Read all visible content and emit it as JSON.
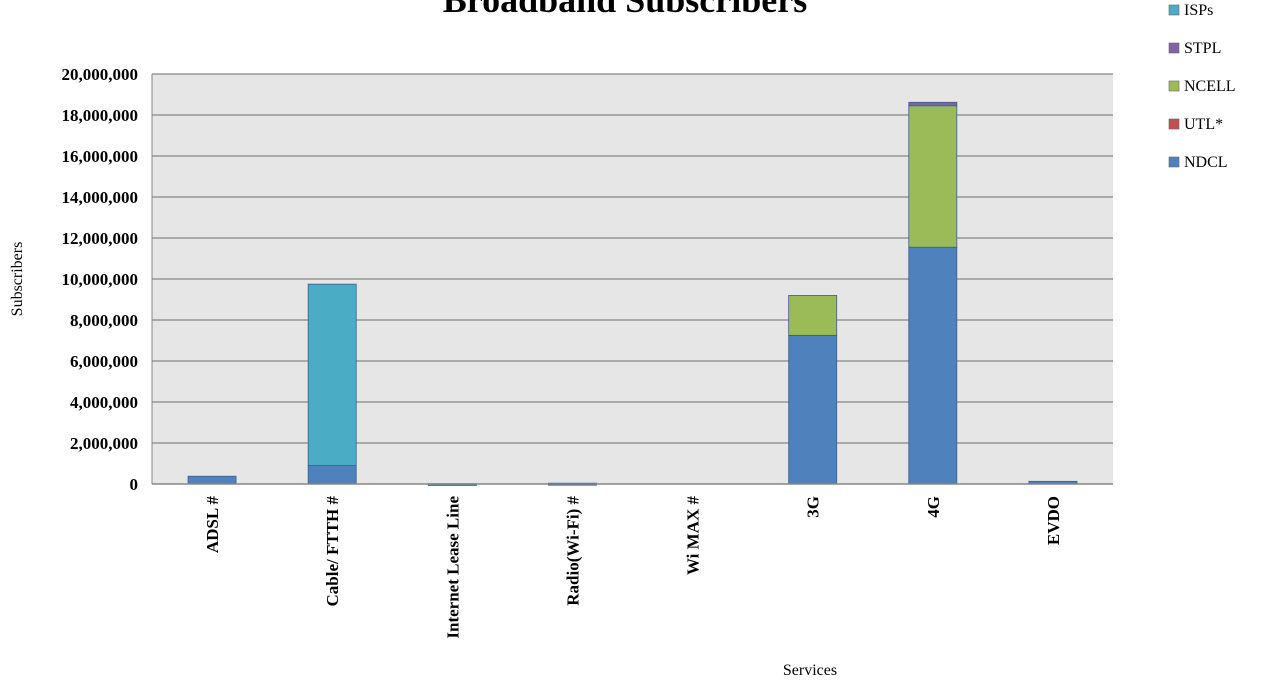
{
  "chart_data": {
    "type": "bar",
    "stacked": true,
    "title": "Broadband Subscribers",
    "xlabel": "Services",
    "ylabel": "Subscribers",
    "ylim": [
      0,
      20000000
    ],
    "yticks": [
      "0",
      "2,000,000",
      "4,000,000",
      "6,000,000",
      "8,000,000",
      "10,000,000",
      "12,000,000",
      "14,000,000",
      "16,000,000",
      "18,000,000",
      "20,000,000"
    ],
    "grid": true,
    "legend_position": "right",
    "categories": [
      "ADSL #",
      "Cable/ FTTH #",
      "Internet Lease Line",
      "Radio(Wi-Fi) #",
      "Wi MAX #",
      "3G",
      "4G",
      "EVDO"
    ],
    "series": [
      {
        "name": "NDCL",
        "color": "#4F81BD",
        "values": [
          380000,
          900000,
          5000,
          15000,
          0,
          7250000,
          11550000,
          130000
        ]
      },
      {
        "name": "UTL*",
        "color": "#C0504D",
        "values": [
          0,
          0,
          0,
          0,
          0,
          0,
          0,
          0
        ]
      },
      {
        "name": "NCELL",
        "color": "#9BBB59",
        "values": [
          0,
          0,
          0,
          0,
          0,
          1950000,
          6900000,
          0
        ]
      },
      {
        "name": "STPL",
        "color": "#8064A2",
        "values": [
          0,
          0,
          0,
          0,
          0,
          0,
          170000,
          0
        ]
      },
      {
        "name": "ISPs",
        "color": "#4BACC6",
        "values": [
          0,
          8850000,
          10000,
          25000,
          0,
          0,
          0,
          0
        ]
      }
    ],
    "legend_order": [
      "ISPs",
      "STPL",
      "NCELL",
      "UTL*",
      "NDCL"
    ]
  }
}
